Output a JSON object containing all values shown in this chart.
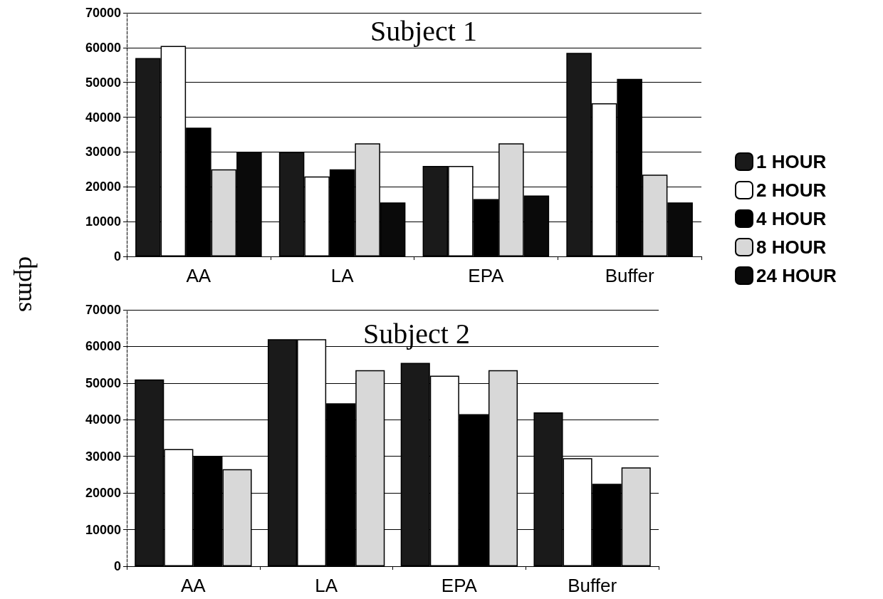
{
  "chart_data": [
    {
      "type": "bar",
      "title": "Subject 1",
      "ylabel": "dpms",
      "categories": [
        "AA",
        "LA",
        "EPA",
        "Buffer"
      ],
      "ylim": [
        0,
        70000
      ],
      "yticks": [
        0,
        10000,
        20000,
        30000,
        40000,
        50000,
        60000,
        70000
      ],
      "grid": "y",
      "legend": "right",
      "series": [
        {
          "name": "1 HOUR",
          "color": "#1a1a1a",
          "values": [
            57000,
            30000,
            26000,
            58500
          ]
        },
        {
          "name": "2 HOUR",
          "color": "#ffffff",
          "values": [
            60500,
            23000,
            26000,
            44000
          ]
        },
        {
          "name": "4 HOUR",
          "color": "#000000",
          "values": [
            37000,
            25000,
            16500,
            51000
          ]
        },
        {
          "name": "8 HOUR",
          "color": "#d8d8d8",
          "values": [
            25000,
            32500,
            32500,
            23500
          ]
        },
        {
          "name": "24 HOUR",
          "color": "#0a0a0a",
          "values": [
            30000,
            15500,
            17500,
            15500
          ]
        }
      ]
    },
    {
      "type": "bar",
      "title": "Subject 2",
      "categories": [
        "AA",
        "LA",
        "EPA",
        "Buffer"
      ],
      "ylim": [
        0,
        70000
      ],
      "yticks": [
        0,
        10000,
        20000,
        30000,
        40000,
        50000,
        60000,
        70000
      ],
      "grid": "y",
      "legend": false,
      "series": [
        {
          "color": "#1a1a1a",
          "values": [
            51000,
            62000,
            55500,
            42000
          ]
        },
        {
          "color": "#ffffff",
          "values": [
            32000,
            62000,
            52000,
            29500
          ]
        },
        {
          "color": "#000000",
          "values": [
            30000,
            44500,
            41500,
            22500
          ]
        },
        {
          "color": "#d8d8d8",
          "values": [
            26500,
            53500,
            53500,
            27000
          ]
        }
      ]
    }
  ]
}
